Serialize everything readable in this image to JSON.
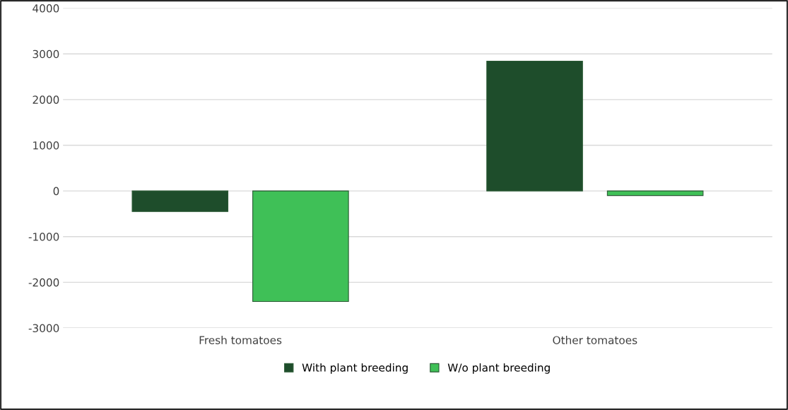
{
  "chart_data": {
    "type": "bar",
    "categories": [
      "Fresh tomatoes",
      "Other tomatoes"
    ],
    "series": [
      {
        "name": "With plant breeding",
        "color": "#1e4d2b",
        "values": [
          -450,
          2840
        ]
      },
      {
        "name": "W/o plant breeding",
        "color": "#3fc057",
        "values": [
          -2420,
          -100
        ]
      }
    ],
    "ylim": [
      -3000,
      4000
    ],
    "yticks": [
      -3000,
      -2000,
      -1000,
      0,
      1000,
      2000,
      3000,
      4000
    ],
    "grid": "y",
    "legend": "bottom"
  }
}
